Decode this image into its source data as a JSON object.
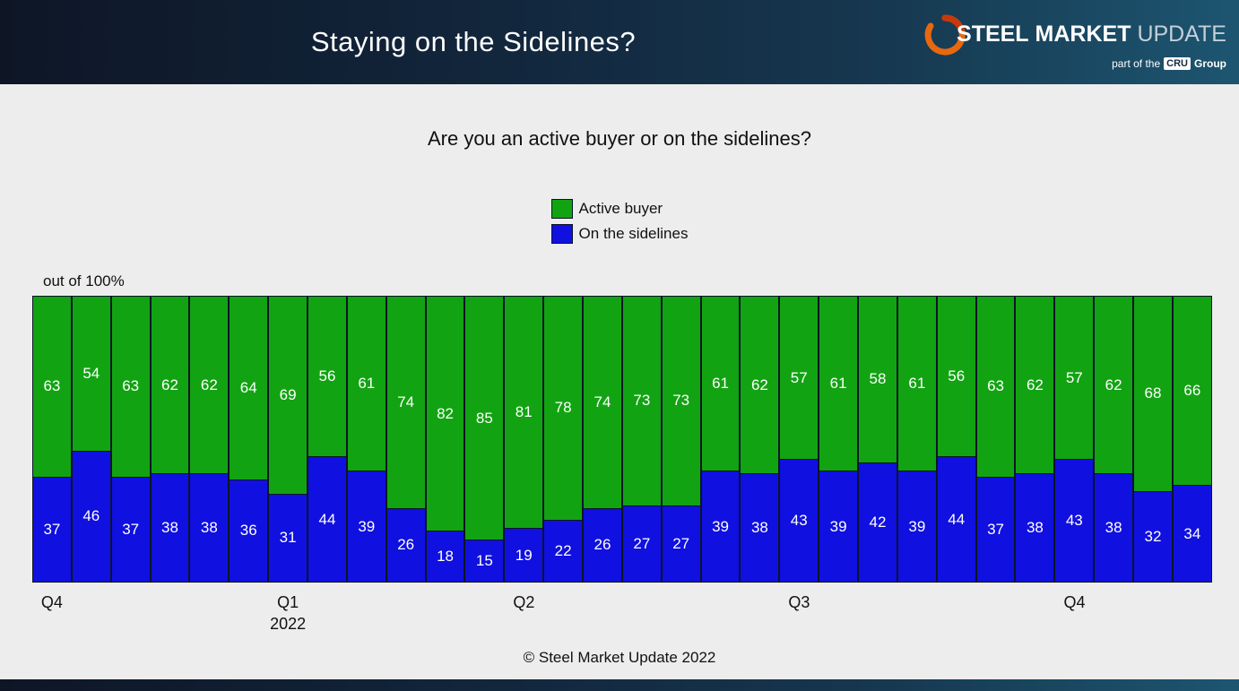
{
  "header": {
    "title": "Staying on the Sidelines?",
    "logo": {
      "steel": "STEEL",
      "market": "MARKET",
      "update": "UPDATE",
      "tagline_prefix": "part of the",
      "cru": "CRU",
      "tagline_suffix": "Group",
      "swoosh_color": "#e8680f"
    }
  },
  "chart_data": {
    "type": "bar",
    "stacked": true,
    "title": "Are you an active buyer or on the sidelines?",
    "unit_label": "out of 100%",
    "ylim": [
      0,
      100
    ],
    "legend_position": "top-center",
    "grid": false,
    "legend": [
      {
        "label": "Active buyer",
        "color": "#12a312"
      },
      {
        "label": "On the sidelines",
        "color": "#1010e0"
      }
    ],
    "series": [
      {
        "name": "Active buyer",
        "values": [
          63,
          54,
          63,
          62,
          62,
          64,
          69,
          56,
          61,
          74,
          82,
          85,
          81,
          78,
          74,
          73,
          73,
          61,
          62,
          57,
          61,
          58,
          61,
          56,
          63,
          62,
          57,
          62,
          68,
          66
        ]
      },
      {
        "name": "On the sidelines",
        "values": [
          37,
          46,
          37,
          38,
          38,
          36,
          31,
          44,
          39,
          26,
          18,
          15,
          19,
          22,
          26,
          27,
          27,
          39,
          38,
          43,
          39,
          42,
          39,
          44,
          37,
          38,
          43,
          38,
          32,
          34
        ]
      }
    ],
    "x_labels": [
      {
        "index": 0,
        "label": "Q4",
        "sub": ""
      },
      {
        "index": 6,
        "label": "Q1",
        "sub": "2022"
      },
      {
        "index": 12,
        "label": "Q2",
        "sub": ""
      },
      {
        "index": 19,
        "label": "Q3",
        "sub": ""
      },
      {
        "index": 26,
        "label": "Q4",
        "sub": ""
      }
    ]
  },
  "footer": {
    "copyright": "© Steel Market Update 2022"
  }
}
